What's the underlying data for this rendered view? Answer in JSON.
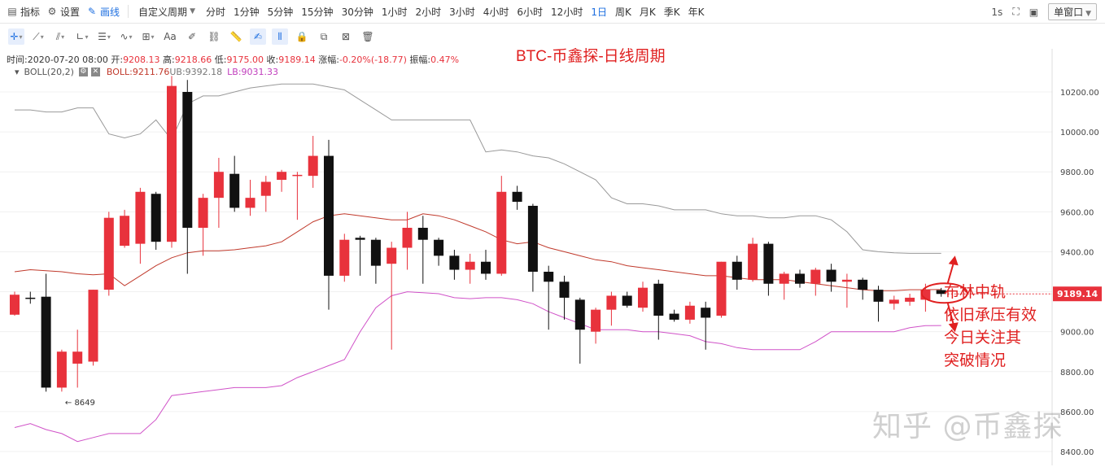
{
  "toolbar": {
    "indicator_label": "指标",
    "settings_label": "设置",
    "draw_label": "画线",
    "custom_period_label": "自定义周期",
    "periods": [
      "分时",
      "1分钟",
      "5分钟",
      "15分钟",
      "30分钟",
      "1小时",
      "2小时",
      "3小时",
      "4小时",
      "6小时",
      "12小时",
      "1日",
      "周K",
      "月K",
      "季K",
      "年K"
    ],
    "active_period": "1日",
    "interval": "1s",
    "window_mode": "单窗口"
  },
  "info": {
    "time_label": "时间:",
    "time": "2020-07-20 08:00",
    "open_label": "开:",
    "open": "9208.13",
    "high_label": "高:",
    "high": "9218.66",
    "low_label": "低:",
    "low": "9175.00",
    "close_label": "收:",
    "close": "9189.14",
    "change_label": "涨幅:",
    "change": "-0.20%(-18.77)",
    "amplitude_label": "振幅:",
    "amplitude": "0.47%"
  },
  "boll": {
    "label": "BOLL(20,2)",
    "mid": "BOLL:9211.76",
    "ub": "UB:9392.18",
    "lb": "LB:9031.33"
  },
  "annotations": {
    "title": "BTC-币鑫探-日线周期",
    "note_lines": [
      "布林中轨",
      "依旧承压有效",
      "今日关注其",
      "突破情况"
    ],
    "low_marker": "8649",
    "watermark": "知乎 @币鑫探"
  },
  "colors": {
    "up": "#e8323c",
    "down": "#111111",
    "mid_band": "#c0392b",
    "upper_band": "#999999",
    "lower_band": "#d052c8",
    "accent": "#1e6fe0",
    "price_tag": "#e8323c"
  },
  "chart_data": {
    "type": "candlestick",
    "title": "BTC-币鑫探-日线周期",
    "y_range": [
      8400,
      10300
    ],
    "y_ticks": [
      8400,
      8600,
      8800,
      9000,
      9200,
      9400,
      9600,
      9800,
      10000,
      10200
    ],
    "y_tick_labels": [
      "8400.00",
      "8600.00",
      "8800.00",
      "9000.00",
      "9200.00",
      "9400.00",
      "9600.00",
      "9800.00",
      "10000.00",
      "10200.00"
    ],
    "last_price": "9189.14",
    "candles": [
      {
        "o": 9085,
        "h": 9200,
        "l": 9080,
        "c": 9185
      },
      {
        "o": 9170,
        "h": 9200,
        "l": 9140,
        "c": 9165
      },
      {
        "o": 9175,
        "h": 9290,
        "l": 8700,
        "c": 8720
      },
      {
        "o": 8720,
        "h": 8910,
        "l": 8700,
        "c": 8900
      },
      {
        "o": 8840,
        "h": 9010,
        "l": 8720,
        "c": 8900
      },
      {
        "o": 8850,
        "h": 9210,
        "l": 8830,
        "c": 9210
      },
      {
        "o": 9210,
        "h": 9600,
        "l": 9180,
        "c": 9570
      },
      {
        "o": 9430,
        "h": 9610,
        "l": 9420,
        "c": 9580
      },
      {
        "o": 9440,
        "h": 9720,
        "l": 9340,
        "c": 9700
      },
      {
        "o": 9690,
        "h": 9700,
        "l": 9410,
        "c": 9450
      },
      {
        "o": 9450,
        "h": 10280,
        "l": 9420,
        "c": 10230
      },
      {
        "o": 10200,
        "h": 10260,
        "l": 9290,
        "c": 9520
      },
      {
        "o": 9520,
        "h": 9690,
        "l": 9380,
        "c": 9670
      },
      {
        "o": 9670,
        "h": 9870,
        "l": 9520,
        "c": 9800
      },
      {
        "o": 9790,
        "h": 9880,
        "l": 9600,
        "c": 9620
      },
      {
        "o": 9620,
        "h": 9760,
        "l": 9580,
        "c": 9670
      },
      {
        "o": 9680,
        "h": 9780,
        "l": 9600,
        "c": 9750
      },
      {
        "o": 9760,
        "h": 9810,
        "l": 9700,
        "c": 9800
      },
      {
        "o": 9780,
        "h": 9800,
        "l": 9560,
        "c": 9785
      },
      {
        "o": 9780,
        "h": 9980,
        "l": 9720,
        "c": 9880
      },
      {
        "o": 9880,
        "h": 9960,
        "l": 9110,
        "c": 9280
      },
      {
        "o": 9280,
        "h": 9490,
        "l": 9250,
        "c": 9460
      },
      {
        "o": 9470,
        "h": 9480,
        "l": 9280,
        "c": 9460
      },
      {
        "o": 9460,
        "h": 9470,
        "l": 9240,
        "c": 9330
      },
      {
        "o": 9340,
        "h": 9450,
        "l": 8910,
        "c": 9420
      },
      {
        "o": 9420,
        "h": 9600,
        "l": 9310,
        "c": 9520
      },
      {
        "o": 9520,
        "h": 9580,
        "l": 9240,
        "c": 9460
      },
      {
        "o": 9460,
        "h": 9470,
        "l": 9330,
        "c": 9380
      },
      {
        "o": 9380,
        "h": 9410,
        "l": 9260,
        "c": 9310
      },
      {
        "o": 9310,
        "h": 9390,
        "l": 9240,
        "c": 9350
      },
      {
        "o": 9350,
        "h": 9410,
        "l": 9260,
        "c": 9290
      },
      {
        "o": 9290,
        "h": 9780,
        "l": 9280,
        "c": 9700
      },
      {
        "o": 9700,
        "h": 9730,
        "l": 9610,
        "c": 9650
      },
      {
        "o": 9630,
        "h": 9640,
        "l": 9200,
        "c": 9300
      },
      {
        "o": 9300,
        "h": 9330,
        "l": 9010,
        "c": 9250
      },
      {
        "o": 9250,
        "h": 9280,
        "l": 9060,
        "c": 9170
      },
      {
        "o": 9160,
        "h": 9170,
        "l": 8840,
        "c": 9010
      },
      {
        "o": 9000,
        "h": 9120,
        "l": 8940,
        "c": 9110
      },
      {
        "o": 9110,
        "h": 9200,
        "l": 9030,
        "c": 9180
      },
      {
        "o": 9180,
        "h": 9200,
        "l": 9120,
        "c": 9130
      },
      {
        "o": 9120,
        "h": 9250,
        "l": 9100,
        "c": 9220
      },
      {
        "o": 9240,
        "h": 9260,
        "l": 8960,
        "c": 9080
      },
      {
        "o": 9090,
        "h": 9110,
        "l": 9050,
        "c": 9060
      },
      {
        "o": 9060,
        "h": 9150,
        "l": 9040,
        "c": 9130
      },
      {
        "o": 9120,
        "h": 9150,
        "l": 8910,
        "c": 9070
      },
      {
        "o": 9080,
        "h": 9350,
        "l": 9070,
        "c": 9350
      },
      {
        "o": 9350,
        "h": 9380,
        "l": 9210,
        "c": 9260
      },
      {
        "o": 9260,
        "h": 9470,
        "l": 9250,
        "c": 9440
      },
      {
        "o": 9440,
        "h": 9450,
        "l": 9180,
        "c": 9240
      },
      {
        "o": 9240,
        "h": 9300,
        "l": 9160,
        "c": 9290
      },
      {
        "o": 9290,
        "h": 9310,
        "l": 9220,
        "c": 9240
      },
      {
        "o": 9240,
        "h": 9320,
        "l": 9180,
        "c": 9310
      },
      {
        "o": 9310,
        "h": 9340,
        "l": 9200,
        "c": 9250
      },
      {
        "o": 9250,
        "h": 9290,
        "l": 9120,
        "c": 9260
      },
      {
        "o": 9260,
        "h": 9270,
        "l": 9160,
        "c": 9210
      },
      {
        "o": 9210,
        "h": 9230,
        "l": 9050,
        "c": 9150
      },
      {
        "o": 9140,
        "h": 9180,
        "l": 9110,
        "c": 9160
      },
      {
        "o": 9150,
        "h": 9190,
        "l": 9130,
        "c": 9170
      },
      {
        "o": 9160,
        "h": 9240,
        "l": 9100,
        "c": 9210
      },
      {
        "o": 9208,
        "h": 9219,
        "l": 9175,
        "c": 9189
      }
    ],
    "mid_band": [
      9300,
      9310,
      9305,
      9300,
      9290,
      9285,
      9290,
      9230,
      9280,
      9330,
      9370,
      9395,
      9405,
      9405,
      9410,
      9420,
      9430,
      9450,
      9500,
      9550,
      9580,
      9590,
      9580,
      9570,
      9560,
      9560,
      9590,
      9580,
      9560,
      9530,
      9500,
      9460,
      9440,
      9450,
      9420,
      9400,
      9380,
      9360,
      9350,
      9330,
      9320,
      9310,
      9300,
      9290,
      9280,
      9280,
      9270,
      9260,
      9260,
      9260,
      9250,
      9240,
      9230,
      9220,
      9210,
      9205,
      9205,
      9210,
      9210,
      9211
    ],
    "upper_band": [
      10110,
      10110,
      10100,
      10100,
      10120,
      10120,
      9990,
      9970,
      9990,
      10060,
      9960,
      10140,
      10180,
      10180,
      10200,
      10220,
      10230,
      10240,
      10240,
      10240,
      10225,
      10210,
      10160,
      10110,
      10060,
      10060,
      10060,
      10060,
      10060,
      10060,
      9900,
      9910,
      9900,
      9880,
      9870,
      9840,
      9800,
      9760,
      9670,
      9640,
      9640,
      9630,
      9610,
      9610,
      9610,
      9590,
      9580,
      9580,
      9570,
      9570,
      9580,
      9580,
      9560,
      9500,
      9410,
      9400,
      9395,
      9392,
      9392,
      9392
    ],
    "lower_band": [
      8520,
      8540,
      8510,
      8490,
      8450,
      8470,
      8490,
      8490,
      8490,
      8560,
      8680,
      8690,
      8700,
      8710,
      8720,
      8720,
      8720,
      8730,
      8770,
      8800,
      8830,
      8860,
      9000,
      9120,
      9180,
      9200,
      9195,
      9190,
      9170,
      9165,
      9170,
      9170,
      9160,
      9140,
      9100,
      9070,
      9040,
      9010,
      9010,
      9010,
      9000,
      9000,
      8990,
      8980,
      8950,
      8940,
      8920,
      8910,
      8910,
      8910,
      8910,
      8950,
      9000,
      9000,
      9000,
      9000,
      9000,
      9020,
      9030,
      9031
    ]
  }
}
